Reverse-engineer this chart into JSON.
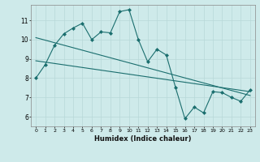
{
  "xlabel": "Humidex (Indice chaleur)",
  "background_color": "#ceeaea",
  "grid_color": "#b8d8d8",
  "line_color": "#1a6e6e",
  "xlim": [
    -0.5,
    23.5
  ],
  "ylim": [
    5.5,
    11.8
  ],
  "yticks": [
    6,
    7,
    8,
    9,
    10,
    11
  ],
  "xticks": [
    0,
    1,
    2,
    3,
    4,
    5,
    6,
    7,
    8,
    9,
    10,
    11,
    12,
    13,
    14,
    15,
    16,
    17,
    18,
    19,
    20,
    21,
    22,
    23
  ],
  "line1_x": [
    0,
    1,
    2,
    3,
    4,
    5,
    6,
    7,
    8,
    9,
    10,
    11,
    12,
    13,
    14,
    15,
    16,
    17,
    18,
    19,
    20,
    21,
    22,
    23
  ],
  "line1_y": [
    8.0,
    8.7,
    9.7,
    10.3,
    10.6,
    10.85,
    10.0,
    10.4,
    10.35,
    11.45,
    11.55,
    10.0,
    8.85,
    9.5,
    9.2,
    7.5,
    5.9,
    6.5,
    6.2,
    7.3,
    7.25,
    7.0,
    6.8,
    7.4
  ],
  "trend1_x": [
    0,
    23
  ],
  "trend1_y": [
    10.1,
    7.1
  ],
  "trend2_x": [
    0,
    23
  ],
  "trend2_y": [
    8.9,
    7.3
  ]
}
